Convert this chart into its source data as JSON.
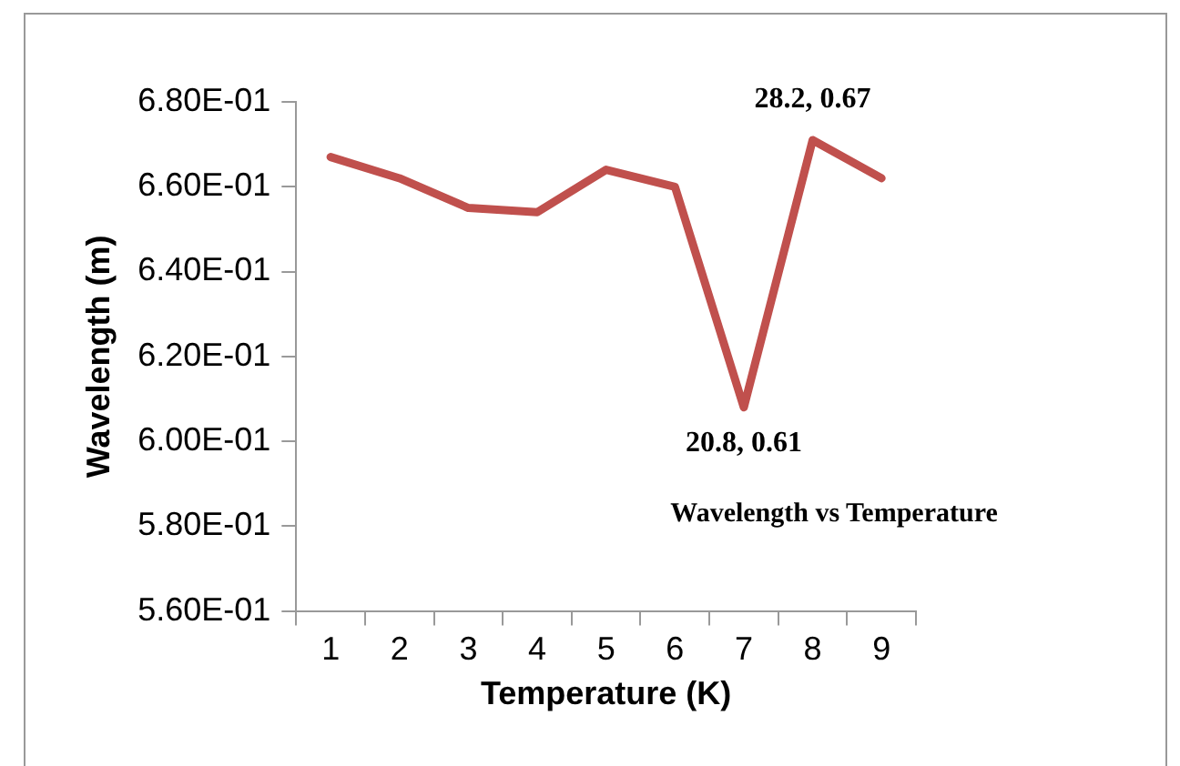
{
  "chart_data": {
    "type": "line",
    "xlabel": "Temperature (K)",
    "ylabel": "Wavelength (m)",
    "categories": [
      "1",
      "2",
      "3",
      "4",
      "5",
      "6",
      "7",
      "8",
      "9"
    ],
    "series": [
      {
        "name": "Wavelength vs Temperature",
        "color": "#c0504d",
        "values": [
          0.667,
          0.662,
          0.655,
          0.654,
          0.664,
          0.66,
          0.608,
          0.671,
          0.662
        ]
      }
    ],
    "ylim": [
      0.56,
      0.68
    ],
    "yticks": [
      {
        "value": 0.56,
        "label": "5.60E-01"
      },
      {
        "value": 0.58,
        "label": "5.80E-01"
      },
      {
        "value": 0.6,
        "label": "6.00E-01"
      },
      {
        "value": 0.62,
        "label": "6.20E-01"
      },
      {
        "value": 0.64,
        "label": "6.40E-01"
      },
      {
        "value": 0.66,
        "label": "6.60E-01"
      },
      {
        "value": 0.68,
        "label": "6.80E-01"
      }
    ],
    "annotations": [
      {
        "text": "28.2, 0.67",
        "x": "8",
        "y": 0.671
      },
      {
        "text": "20.8, 0.61",
        "x": "7",
        "y": 0.608
      }
    ],
    "grid": false,
    "legend": false,
    "marker": "none",
    "line_style": "solid"
  }
}
